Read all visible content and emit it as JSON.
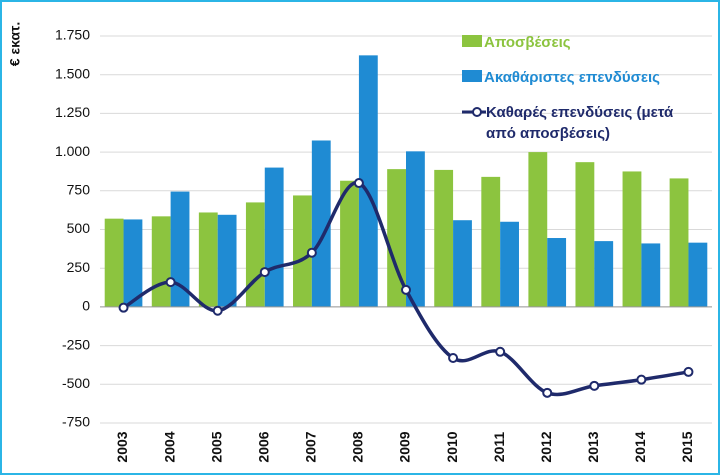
{
  "chart_data": {
    "type": "bar-line",
    "y_label": "€ εκατ.",
    "categories": [
      "2003",
      "2004",
      "2005",
      "2006",
      "2007",
      "2008",
      "2009",
      "2010",
      "2011",
      "2012",
      "2013",
      "2014",
      "2015"
    ],
    "series": [
      {
        "name": "Αποσβέσεις",
        "type": "bar",
        "color": "#8cc43f",
        "values": [
          570,
          585,
          610,
          675,
          720,
          815,
          890,
          885,
          840,
          1000,
          935,
          875,
          830
        ]
      },
      {
        "name": "Ακαθάριστες επενδύσεις",
        "type": "bar",
        "color": "#1f8bd3",
        "values": [
          565,
          745,
          595,
          900,
          1075,
          1625,
          1005,
          560,
          550,
          445,
          425,
          410,
          415
        ]
      },
      {
        "name": "Καθαρές επενδύσεις (μετά από αποσβέσεις)",
        "type": "line",
        "color": "#1f2a6b",
        "values": [
          -5,
          160,
          -25,
          225,
          350,
          800,
          110,
          -330,
          -290,
          -555,
          -510,
          -470,
          -420
        ]
      }
    ],
    "ylim": [
      -750,
      1750
    ],
    "yticks": [
      -750,
      -500,
      -250,
      0,
      250,
      500,
      750,
      {
        "value": 1000,
        "label": "1.000"
      },
      {
        "value": 1250,
        "label": "1.250"
      },
      {
        "value": 1500,
        "label": "1.500"
      },
      {
        "value": 1750,
        "label": "1.750"
      }
    ],
    "grid": true
  }
}
